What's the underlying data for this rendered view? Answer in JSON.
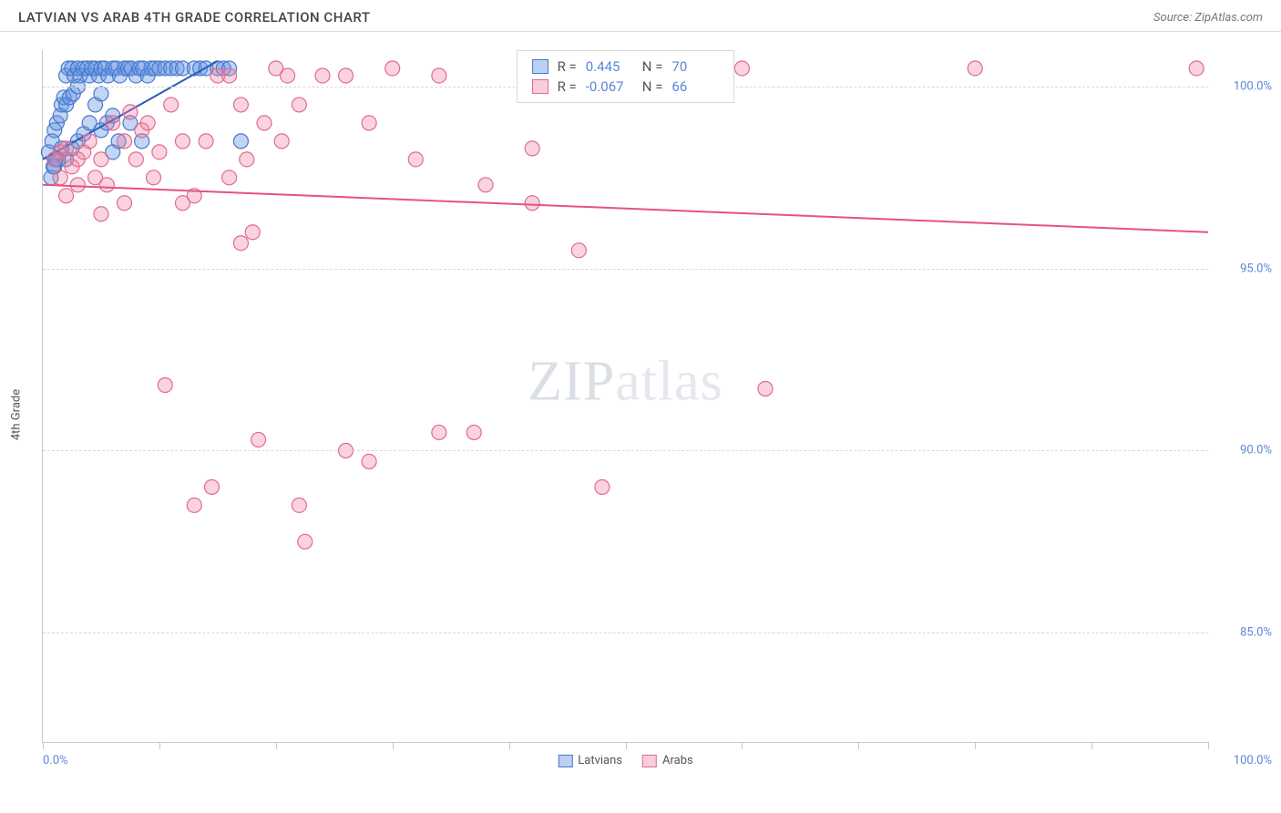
{
  "header": {
    "title": "LATVIAN VS ARAB 4TH GRADE CORRELATION CHART",
    "source": "Source: ZipAtlas.com"
  },
  "chart": {
    "type": "scatter",
    "ylabel": "4th Grade",
    "xlim": [
      0,
      100
    ],
    "ylim": [
      82,
      101
    ],
    "x_tick_positions": [
      0,
      10,
      20,
      30,
      40,
      50,
      60,
      70,
      80,
      90,
      100
    ],
    "x_min_label": "0.0%",
    "x_max_label": "100.0%",
    "y_gridlines": [
      85,
      90,
      95,
      100
    ],
    "y_tick_labels": [
      "85.0%",
      "90.0%",
      "95.0%",
      "100.0%"
    ],
    "background_color": "#ffffff",
    "grid_color": "#d8d8d8",
    "axis_color": "#c8c8c8",
    "tick_label_color": "#5b87d6",
    "marker_radius": 8,
    "marker_stroke_width": 1.2,
    "line_width": 2,
    "watermark": "ZIPatlas",
    "stats_legend": {
      "r_label": "R =",
      "n_label": "N =",
      "series1": {
        "r": "0.445",
        "n": "70"
      },
      "series2": {
        "r": "-0.067",
        "n": "66"
      }
    },
    "series": [
      {
        "name": "Latvians",
        "fill_color": "rgba(100,150,230,0.40)",
        "stroke_color": "#4a78c8",
        "trend_color": "#2a5db8",
        "trend": {
          "x1": 0,
          "y1": 98.0,
          "x2": 15,
          "y2": 100.7
        },
        "points": [
          [
            0.5,
            98.2
          ],
          [
            0.8,
            98.5
          ],
          [
            1.0,
            98.8
          ],
          [
            1.2,
            99.0
          ],
          [
            1.5,
            99.2
          ],
          [
            1.6,
            99.5
          ],
          [
            1.8,
            99.7
          ],
          [
            2.0,
            100.3
          ],
          [
            2.2,
            100.5
          ],
          [
            2.5,
            100.5
          ],
          [
            2.7,
            100.3
          ],
          [
            3.0,
            100.5
          ],
          [
            3.2,
            100.3
          ],
          [
            3.5,
            100.5
          ],
          [
            3.8,
            100.5
          ],
          [
            4.0,
            100.3
          ],
          [
            4.2,
            100.5
          ],
          [
            4.5,
            100.5
          ],
          [
            4.8,
            100.3
          ],
          [
            5.0,
            100.5
          ],
          [
            5.3,
            100.5
          ],
          [
            5.6,
            100.3
          ],
          [
            6.0,
            100.5
          ],
          [
            6.3,
            100.5
          ],
          [
            6.6,
            100.3
          ],
          [
            7.0,
            100.5
          ],
          [
            7.3,
            100.5
          ],
          [
            7.6,
            100.5
          ],
          [
            8.0,
            100.3
          ],
          [
            8.3,
            100.5
          ],
          [
            8.6,
            100.5
          ],
          [
            9.0,
            100.3
          ],
          [
            9.3,
            100.5
          ],
          [
            9.6,
            100.5
          ],
          [
            10.0,
            100.5
          ],
          [
            10.5,
            100.5
          ],
          [
            11.0,
            100.5
          ],
          [
            11.5,
            100.5
          ],
          [
            12.0,
            100.5
          ],
          [
            13.0,
            100.5
          ],
          [
            13.5,
            100.5
          ],
          [
            14.0,
            100.5
          ],
          [
            15.0,
            100.5
          ],
          [
            15.5,
            100.5
          ],
          [
            16.0,
            100.5
          ],
          [
            2.0,
            98.0
          ],
          [
            2.5,
            98.3
          ],
          [
            3.0,
            98.5
          ],
          [
            3.5,
            98.7
          ],
          [
            4.0,
            99.0
          ],
          [
            1.0,
            97.8
          ],
          [
            1.3,
            98.0
          ],
          [
            1.6,
            98.3
          ],
          [
            0.7,
            97.5
          ],
          [
            0.9,
            97.8
          ],
          [
            1.1,
            98.0
          ],
          [
            5.0,
            98.8
          ],
          [
            5.5,
            99.0
          ],
          [
            6.0,
            99.2
          ],
          [
            2.0,
            99.5
          ],
          [
            2.3,
            99.7
          ],
          [
            2.6,
            99.8
          ],
          [
            3.0,
            100.0
          ],
          [
            4.5,
            99.5
          ],
          [
            5.0,
            99.8
          ],
          [
            6.0,
            98.2
          ],
          [
            6.5,
            98.5
          ],
          [
            7.5,
            99.0
          ],
          [
            8.5,
            98.5
          ],
          [
            17.0,
            98.5
          ]
        ]
      },
      {
        "name": "Arabs",
        "fill_color": "rgba(240,130,160,0.35)",
        "stroke_color": "#e06a90",
        "trend_color": "#e5537f",
        "trend": {
          "x1": 0,
          "y1": 97.3,
          "x2": 100,
          "y2": 96.0
        },
        "points": [
          [
            1.0,
            98.0
          ],
          [
            1.5,
            98.2
          ],
          [
            2.0,
            98.3
          ],
          [
            2.5,
            97.8
          ],
          [
            3.0,
            98.0
          ],
          [
            3.5,
            98.2
          ],
          [
            4.0,
            98.5
          ],
          [
            4.5,
            97.5
          ],
          [
            5.0,
            98.0
          ],
          [
            5.5,
            97.3
          ],
          [
            6.0,
            99.0
          ],
          [
            7.0,
            98.5
          ],
          [
            7.5,
            99.3
          ],
          [
            8.0,
            98.0
          ],
          [
            8.5,
            98.8
          ],
          [
            9.0,
            99.0
          ],
          [
            10.0,
            98.2
          ],
          [
            11.0,
            99.5
          ],
          [
            12.0,
            98.5
          ],
          [
            13.0,
            97.0
          ],
          [
            14.0,
            98.5
          ],
          [
            15.0,
            100.3
          ],
          [
            16.0,
            100.3
          ],
          [
            17.0,
            99.5
          ],
          [
            17.5,
            98.0
          ],
          [
            18.0,
            96.0
          ],
          [
            19.0,
            99.0
          ],
          [
            20.0,
            100.5
          ],
          [
            20.5,
            98.5
          ],
          [
            21.0,
            100.3
          ],
          [
            22.0,
            99.5
          ],
          [
            24.0,
            100.3
          ],
          [
            26.0,
            100.3
          ],
          [
            28.0,
            99.0
          ],
          [
            30.0,
            100.5
          ],
          [
            32.0,
            98.0
          ],
          [
            34.0,
            100.3
          ],
          [
            38.0,
            97.3
          ],
          [
            42.0,
            98.3
          ],
          [
            44.0,
            100.3
          ],
          [
            46.0,
            95.5
          ],
          [
            60.0,
            100.5
          ],
          [
            80.0,
            100.5
          ],
          [
            99.0,
            100.5
          ],
          [
            10.5,
            91.8
          ],
          [
            17.0,
            95.7
          ],
          [
            18.5,
            90.3
          ],
          [
            22.0,
            88.5
          ],
          [
            13.0,
            88.5
          ],
          [
            14.5,
            89.0
          ],
          [
            22.5,
            87.5
          ],
          [
            26.0,
            90.0
          ],
          [
            28.0,
            89.7
          ],
          [
            34.0,
            90.5
          ],
          [
            37.0,
            90.5
          ],
          [
            48.0,
            89.0
          ],
          [
            42.0,
            96.8
          ],
          [
            62.0,
            91.7
          ],
          [
            1.5,
            97.5
          ],
          [
            2.0,
            97.0
          ],
          [
            3.0,
            97.3
          ],
          [
            5.0,
            96.5
          ],
          [
            7.0,
            96.8
          ],
          [
            9.5,
            97.5
          ],
          [
            12.0,
            96.8
          ],
          [
            16.0,
            97.5
          ]
        ]
      }
    ],
    "bottom_legend": {
      "series1_label": "Latvians",
      "series2_label": "Arabs"
    }
  }
}
